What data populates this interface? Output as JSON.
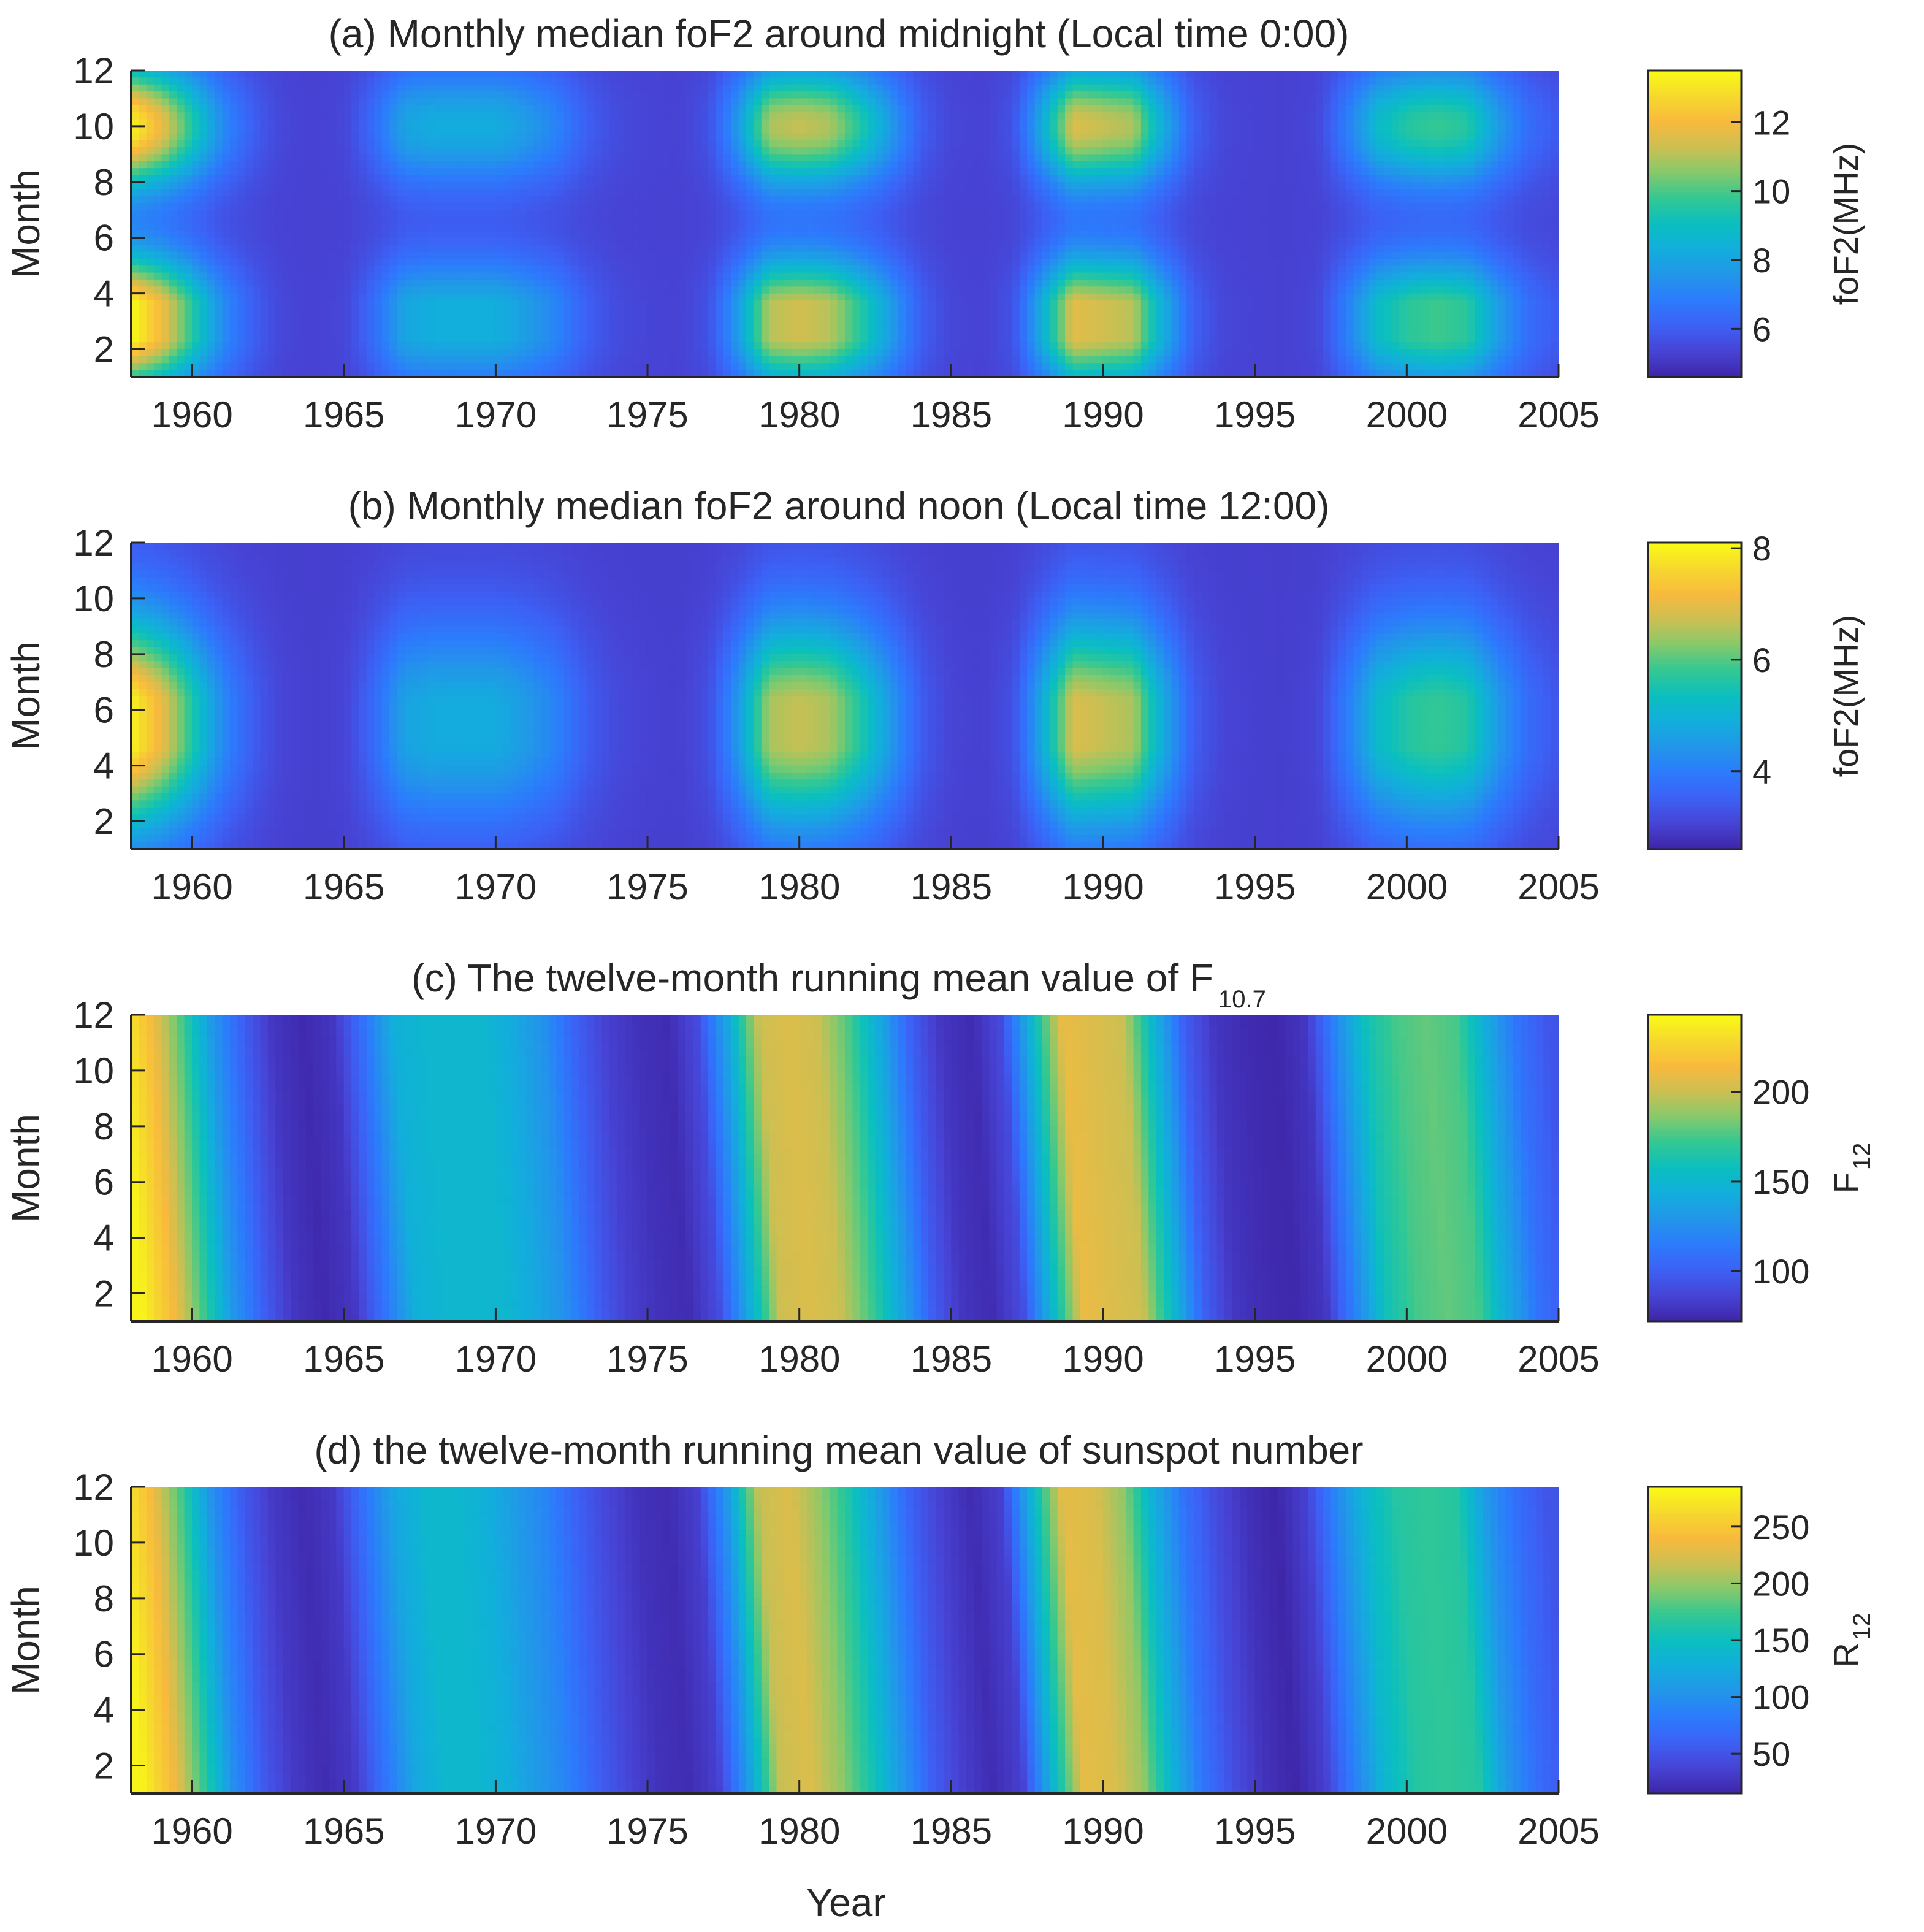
{
  "figure": {
    "xlabel": "Year"
  },
  "colormap": [
    "#3e26a8",
    "#4743d4",
    "#3c61f5",
    "#2c7bfc",
    "#2296e9",
    "#12aedc",
    "#0bbfbf",
    "#33c893",
    "#86c96b",
    "#cdbf52",
    "#f8ba3d",
    "#f6d92d",
    "#f9fb15"
  ],
  "chart_data": [
    {
      "id": "a",
      "type": "heatmap",
      "title": "(a) Monthly median foF2 around midnight (Local time 0:00)",
      "xlabel": "",
      "ylabel": "Month",
      "xlim": [
        1958,
        2005
      ],
      "ylim": [
        1,
        12
      ],
      "xticks": [
        1960,
        1965,
        1970,
        1975,
        1980,
        1985,
        1990,
        1995,
        2000,
        2005
      ],
      "yticks": [
        2,
        4,
        6,
        8,
        10,
        12
      ],
      "colorbar": {
        "label": "foF2(MHz)",
        "label_sub": "",
        "range": [
          4.6,
          13.5
        ],
        "ticks": [
          6,
          8,
          10,
          12
        ]
      },
      "value_model": {
        "kind": "solar_seasonal",
        "base": 5.3,
        "solar_amp": 8.2,
        "solar_scale": "f107",
        "seasonal_month_peaks": [
          {
            "month": 3,
            "weight": 1.0,
            "width": 1.6
          },
          {
            "month": 10,
            "weight": 0.9,
            "width": 1.5
          }
        ],
        "seasonal_floor": 0.08
      }
    },
    {
      "id": "b",
      "type": "heatmap",
      "title": "(b) Monthly median foF2 around noon (Local time 12:00)",
      "xlabel": "",
      "ylabel": "Month",
      "xlim": [
        1958,
        2005
      ],
      "ylim": [
        1,
        12
      ],
      "xticks": [
        1960,
        1965,
        1970,
        1975,
        1980,
        1985,
        1990,
        1995,
        2000,
        2005
      ],
      "yticks": [
        2,
        4,
        6,
        8,
        10,
        12
      ],
      "colorbar": {
        "label": "foF2(MHz)",
        "label_sub": "",
        "range": [
          2.6,
          8.1
        ],
        "ticks": [
          4,
          6,
          8
        ]
      },
      "value_model": {
        "kind": "solar_seasonal",
        "base": 3.0,
        "solar_amp": 5.0,
        "solar_scale": "f107",
        "seasonal_month_peaks": [
          {
            "month": 5.5,
            "weight": 1.0,
            "width": 2.6
          }
        ],
        "seasonal_floor": 0.05
      }
    },
    {
      "id": "c",
      "type": "heatmap",
      "title": "(c) The twelve-month running mean value of F",
      "title_sub": "10.7",
      "xlabel": "",
      "ylabel": "Month",
      "xlim": [
        1958,
        2005
      ],
      "ylim": [
        1,
        12
      ],
      "xticks": [
        1960,
        1965,
        1970,
        1975,
        1980,
        1985,
        1990,
        1995,
        2000,
        2005
      ],
      "yticks": [
        2,
        4,
        6,
        8,
        10,
        12
      ],
      "colorbar": {
        "label": "F",
        "label_sub": "12",
        "range": [
          72,
          243
        ],
        "ticks": [
          100,
          150,
          200
        ]
      },
      "value_model": {
        "kind": "solar_index",
        "index": "f107"
      }
    },
    {
      "id": "d",
      "type": "heatmap",
      "title": "(d) the twelve-month running mean value of sunspot number",
      "xlabel": "Year",
      "ylabel": "Month",
      "xlim": [
        1958,
        2005
      ],
      "ylim": [
        1,
        12
      ],
      "xticks": [
        1960,
        1965,
        1970,
        1975,
        1980,
        1985,
        1990,
        1995,
        2000,
        2005
      ],
      "yticks": [
        2,
        4,
        6,
        8,
        10,
        12
      ],
      "colorbar": {
        "label": "R",
        "label_sub": "12",
        "range": [
          15,
          285
        ],
        "ticks": [
          50,
          100,
          150,
          200,
          250
        ]
      },
      "value_model": {
        "kind": "solar_index",
        "index": "r12"
      }
    }
  ],
  "solar_series": {
    "years": [
      1958.0,
      1959.0,
      1960.0,
      1961.0,
      1962.0,
      1963.0,
      1964.0,
      1965.0,
      1966.0,
      1967.0,
      1968.0,
      1969.0,
      1970.0,
      1971.0,
      1972.0,
      1973.0,
      1974.0,
      1975.0,
      1976.0,
      1977.0,
      1978.0,
      1979.0,
      1980.0,
      1981.0,
      1982.0,
      1983.0,
      1984.0,
      1985.0,
      1986.0,
      1987.0,
      1988.0,
      1989.0,
      1990.0,
      1991.0,
      1992.0,
      1993.0,
      1994.0,
      1995.0,
      1996.0,
      1997.0,
      1998.0,
      1999.0,
      2000.0,
      2001.0,
      2002.0,
      2003.0,
      2004.0,
      2005.0
    ],
    "f107": [
      240,
      215,
      175,
      130,
      100,
      80,
      74,
      80,
      110,
      145,
      150,
      150,
      150,
      140,
      125,
      100,
      85,
      78,
      75,
      90,
      140,
      200,
      205,
      200,
      175,
      140,
      100,
      80,
      75,
      90,
      150,
      210,
      205,
      200,
      150,
      100,
      80,
      75,
      73,
      80,
      120,
      160,
      175,
      180,
      175,
      140,
      110,
      95
    ],
    "r12": [
      280,
      240,
      175,
      100,
      55,
      30,
      20,
      30,
      75,
      120,
      140,
      140,
      130,
      110,
      90,
      60,
      40,
      25,
      20,
      35,
      110,
      215,
      225,
      200,
      160,
      110,
      60,
      35,
      20,
      35,
      135,
      230,
      225,
      200,
      130,
      75,
      45,
      25,
      15,
      35,
      90,
      140,
      165,
      170,
      165,
      105,
      70,
      50
    ]
  }
}
